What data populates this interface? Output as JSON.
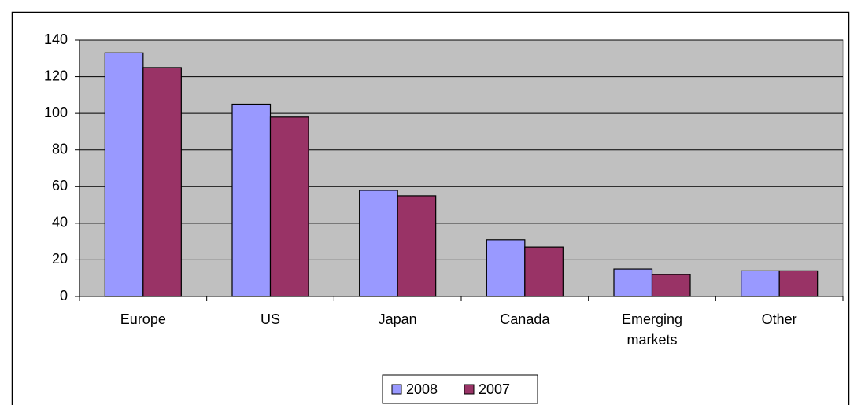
{
  "chart_data": {
    "type": "bar",
    "categories": [
      "Europe",
      "US",
      "Japan",
      "Canada",
      "Emerging markets",
      "Other"
    ],
    "series": [
      {
        "name": "2008",
        "color": "#9999ff",
        "values": [
          133,
          105,
          58,
          31,
          15,
          14
        ]
      },
      {
        "name": "2007",
        "color": "#993366",
        "values": [
          125,
          98,
          55,
          27,
          12,
          14
        ]
      }
    ],
    "ylim": [
      0,
      140
    ],
    "yticks": [
      0,
      20,
      40,
      60,
      80,
      100,
      120,
      140
    ],
    "grid": true,
    "plot_background": "#c0c0c0",
    "legend": "bottom"
  }
}
